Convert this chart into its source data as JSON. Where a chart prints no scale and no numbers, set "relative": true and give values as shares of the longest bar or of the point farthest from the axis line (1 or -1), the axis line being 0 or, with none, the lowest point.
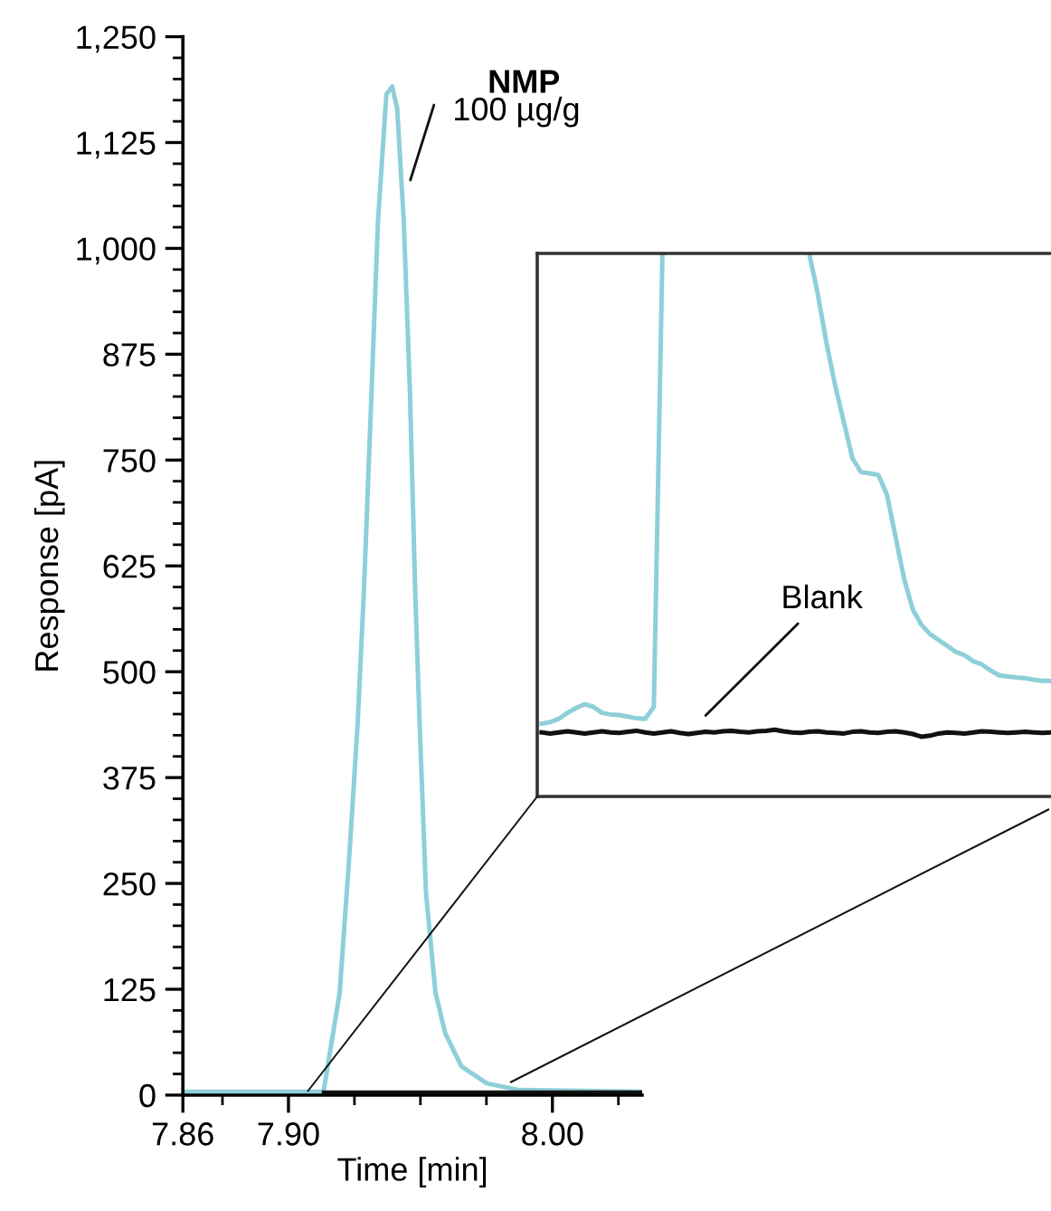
{
  "chart_data": [
    {
      "type": "line",
      "xlabel": "Time [min]",
      "ylabel": "Response [pA]",
      "xlim": [
        7.86,
        8.034
      ],
      "ylim": [
        0,
        1250
      ],
      "xticks": [
        7.86,
        {
          "value": 7.875,
          "label": null
        },
        {
          "value": 7.9,
          "label": "7.90"
        },
        {
          "value": 7.925,
          "label": null
        },
        {
          "value": 7.95,
          "label": null
        },
        {
          "value": 7.975,
          "label": null
        },
        {
          "value": 8.0,
          "label": "8.00"
        },
        {
          "value": 8.025,
          "label": null
        }
      ],
      "yticks": [
        0,
        {
          "value": 25,
          "label": null
        },
        {
          "value": 50,
          "label": null
        },
        {
          "value": 75,
          "label": null
        },
        {
          "value": 100,
          "label": null
        },
        125,
        {
          "value": 150,
          "label": null
        },
        {
          "value": 175,
          "label": null
        },
        {
          "value": 200,
          "label": null
        },
        {
          "value": 225,
          "label": null
        },
        250,
        {
          "value": 275,
          "label": null
        },
        {
          "value": 300,
          "label": null
        },
        {
          "value": 325,
          "label": null
        },
        {
          "value": 350,
          "label": null
        },
        375,
        {
          "value": 400,
          "label": null
        },
        {
          "value": 425,
          "label": null
        },
        {
          "value": 450,
          "label": null
        },
        {
          "value": 475,
          "label": null
        },
        500,
        {
          "value": 525,
          "label": null
        },
        {
          "value": 550,
          "label": null
        },
        {
          "value": 575,
          "label": null
        },
        {
          "value": 600,
          "label": null
        },
        625,
        {
          "value": 650,
          "label": null
        },
        {
          "value": 675,
          "label": null
        },
        {
          "value": 700,
          "label": null
        },
        {
          "value": 725,
          "label": null
        },
        750,
        {
          "value": 775,
          "label": null
        },
        {
          "value": 800,
          "label": null
        },
        {
          "value": 825,
          "label": null
        },
        {
          "value": 850,
          "label": null
        },
        875,
        {
          "value": 900,
          "label": null
        },
        {
          "value": 925,
          "label": null
        },
        {
          "value": 950,
          "label": null
        },
        {
          "value": 975,
          "label": null
        },
        {
          "value": 1000,
          "label": "1,000"
        },
        {
          "value": 1025,
          "label": null
        },
        {
          "value": 1050,
          "label": null
        },
        {
          "value": 1075,
          "label": null
        },
        {
          "value": 1100,
          "label": null
        },
        {
          "value": 1125,
          "label": "1,125"
        },
        {
          "value": 1150,
          "label": null
        },
        {
          "value": 1175,
          "label": null
        },
        {
          "value": 1200,
          "label": null
        },
        {
          "value": 1225,
          "label": null
        },
        {
          "value": 1250,
          "label": "1,250"
        }
      ],
      "annotations": [
        {
          "text": "100 µg/g",
          "x": 7.9393,
          "y": 1191
        }
      ],
      "series": [
        {
          "name": "NMP",
          "color": "#8ecfd8",
          "x": [
            7.86,
            7.9,
            7.9133,
            7.9194,
            7.923,
            7.9262,
            7.9286,
            7.9315,
            7.9339,
            7.9371,
            7.9393,
            7.9412,
            7.9437,
            7.946,
            7.948,
            7.9497,
            7.9521,
            7.9557,
            7.9594,
            7.9655,
            7.9751,
            7.9873,
            8.034
          ],
          "values": [
            4,
            4,
            4,
            121,
            280,
            438,
            596,
            833,
            1031,
            1182,
            1191,
            1165,
            1031,
            833,
            596,
            438,
            239,
            121,
            73,
            34,
            14,
            6,
            4
          ]
        },
        {
          "color": "#111111",
          "x": [
            7.9135,
            8.034
          ],
          "values": [
            3,
            3
          ]
        }
      ]
    },
    {
      "type": "line",
      "relative": true,
      "categories": [
        null,
        null,
        null,
        null,
        null,
        null,
        null,
        null,
        null,
        null,
        null,
        null,
        null,
        null,
        null,
        null,
        null,
        null,
        null,
        null,
        null,
        null,
        null,
        null,
        null,
        null,
        null,
        null,
        null,
        null,
        null,
        null,
        null,
        null,
        null,
        null,
        null,
        null,
        null,
        null,
        null,
        null,
        null,
        null,
        null,
        null,
        null,
        null,
        null,
        null,
        null,
        null,
        null,
        null,
        null,
        null,
        null,
        null,
        null,
        null
      ],
      "series": [
        {
          "color": "#8ecfd8",
          "values": [
            0.134,
            0.137,
            0.143,
            0.154,
            0.163,
            0.17,
            0.165,
            0.154,
            0.151,
            0.15,
            0.147,
            0.144,
            0.143,
            0.165,
            1.0,
            null,
            null,
            null,
            null,
            null,
            null,
            null,
            null,
            null,
            null,
            null,
            null,
            null,
            null,
            null,
            null,
            1.0,
            0.924,
            0.835,
            0.757,
            0.69,
            0.623,
            0.597,
            0.595,
            0.592,
            0.556,
            0.478,
            0.4,
            0.344,
            0.316,
            0.299,
            0.288,
            0.277,
            0.266,
            0.26,
            0.249,
            0.243,
            0.232,
            0.223,
            0.221,
            0.219,
            0.218,
            0.215,
            0.213,
            0.213
          ]
        },
        {
          "name": "Blank",
          "color": "#111111",
          "values": [
            0.118,
            0.116,
            0.118,
            0.12,
            0.118,
            0.116,
            0.118,
            0.12,
            0.118,
            0.117,
            0.119,
            0.121,
            0.118,
            0.116,
            0.118,
            0.12,
            0.117,
            0.115,
            0.117,
            0.119,
            0.118,
            0.12,
            0.121,
            0.119,
            0.118,
            0.12,
            0.121,
            0.123,
            0.12,
            0.118,
            0.117,
            0.119,
            0.12,
            0.118,
            0.117,
            0.116,
            0.119,
            0.12,
            0.118,
            0.117,
            0.119,
            0.12,
            0.118,
            0.115,
            0.11,
            0.112,
            0.116,
            0.118,
            0.117,
            0.116,
            0.118,
            0.12,
            0.119,
            0.118,
            0.117,
            0.118,
            0.119,
            0.118,
            0.117,
            0.118
          ]
        }
      ]
    }
  ]
}
